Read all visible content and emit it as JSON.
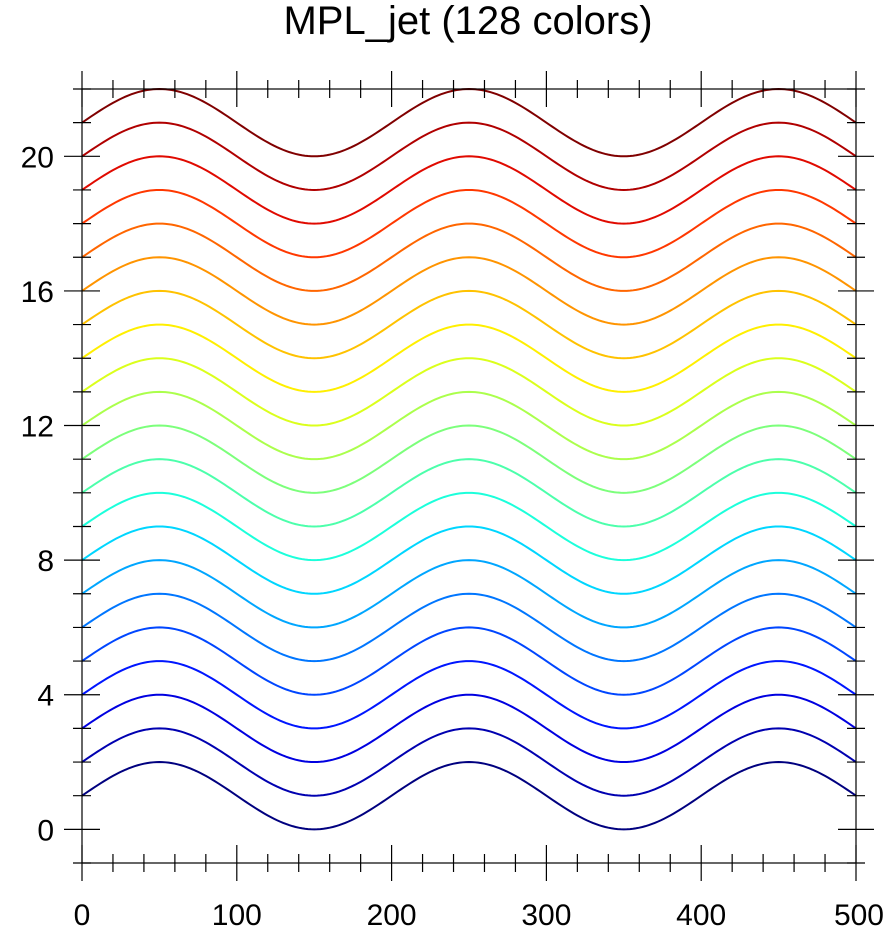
{
  "chart_data": {
    "type": "line",
    "title": "MPL_jet (128 colors)",
    "xlabel": "",
    "ylabel": "",
    "xlim": [
      0,
      500
    ],
    "ylim": [
      -1,
      22
    ],
    "x_ticks": [
      {
        "value": 0,
        "label": "0"
      },
      {
        "value": 100,
        "label": "100"
      },
      {
        "value": 200,
        "label": "200"
      },
      {
        "value": 300,
        "label": "300"
      },
      {
        "value": 400,
        "label": "400"
      },
      {
        "value": 500,
        "label": "500"
      }
    ],
    "y_ticks": [
      {
        "value": 0,
        "label": "0"
      },
      {
        "value": 4,
        "label": "4"
      },
      {
        "value": 8,
        "label": "8"
      },
      {
        "value": 12,
        "label": "12"
      },
      {
        "value": 16,
        "label": "16"
      },
      {
        "value": 20,
        "label": "20"
      }
    ],
    "x_minor_step": 20,
    "y_minor_step": 1,
    "grid": false,
    "legend": "none",
    "curve_formula": "y = offset + sin(2*pi*x/200)",
    "series": [
      {
        "offset": 1,
        "color": "#00007f"
      },
      {
        "offset": 2,
        "color": "#0000b0"
      },
      {
        "offset": 3,
        "color": "#0000e0"
      },
      {
        "offset": 4,
        "color": "#0016ff"
      },
      {
        "offset": 5,
        "color": "#0046ff"
      },
      {
        "offset": 6,
        "color": "#0076ff"
      },
      {
        "offset": 7,
        "color": "#00a6ff"
      },
      {
        "offset": 8,
        "color": "#00d6ff"
      },
      {
        "offset": 9,
        "color": "#1cffdb"
      },
      {
        "offset": 10,
        "color": "#4cffab"
      },
      {
        "offset": 11,
        "color": "#7cff7b"
      },
      {
        "offset": 12,
        "color": "#abff4c"
      },
      {
        "offset": 13,
        "color": "#dbff1c"
      },
      {
        "offset": 14,
        "color": "#ffef00"
      },
      {
        "offset": 15,
        "color": "#ffc200"
      },
      {
        "offset": 16,
        "color": "#ff9400"
      },
      {
        "offset": 17,
        "color": "#ff6600"
      },
      {
        "offset": 18,
        "color": "#ff3800"
      },
      {
        "offset": 19,
        "color": "#e00a00"
      },
      {
        "offset": 20,
        "color": "#b00000"
      },
      {
        "offset": 21,
        "color": "#800000"
      }
    ]
  }
}
